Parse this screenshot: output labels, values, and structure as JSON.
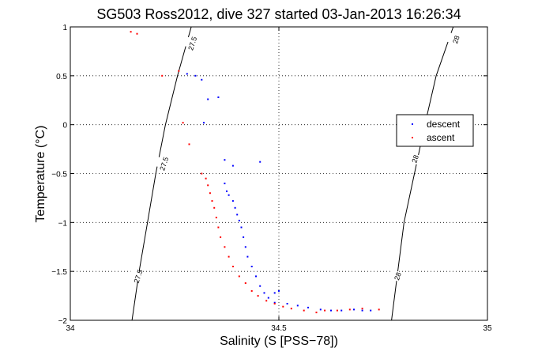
{
  "chart_data": {
    "type": "scatter",
    "title": "SG503 Ross2012, dive 327 started 03-Jan-2013 16:26:34",
    "xlabel": "Salinity (S [PSS−78])",
    "ylabel": "Temperature (°C)",
    "xlim": [
      34,
      35
    ],
    "ylim": [
      -2,
      1
    ],
    "x_ticks": [
      34,
      34.5,
      35
    ],
    "x_tick_labels": [
      "34",
      "34.5",
      "35"
    ],
    "y_ticks": [
      -2,
      -1.5,
      -1,
      -0.5,
      0,
      0.5,
      1
    ],
    "y_tick_labels": [
      "−2",
      "−1.5",
      "−1",
      "−0.5",
      "0",
      "0.5",
      "1"
    ],
    "grid": true,
    "legend_position": "right",
    "contours": [
      {
        "label": "27.5",
        "color": "#000000",
        "points": [
          [
            34.148,
            -2.0
          ],
          [
            34.165,
            -1.5
          ],
          [
            34.185,
            -1.0
          ],
          [
            34.205,
            -0.5
          ],
          [
            34.228,
            0.0
          ],
          [
            34.257,
            0.5
          ],
          [
            34.29,
            1.0
          ]
        ],
        "labels": [
          {
            "x": 34.163,
            "y": -1.55
          },
          {
            "x": 34.225,
            "y": -0.4
          },
          {
            "x": 34.293,
            "y": 0.83
          }
        ]
      },
      {
        "label": "28",
        "color": "#000000",
        "points": [
          [
            34.77,
            -2.0
          ],
          [
            34.785,
            -1.5
          ],
          [
            34.8,
            -1.0
          ],
          [
            34.825,
            -0.5
          ],
          [
            34.85,
            0.0
          ],
          [
            34.877,
            0.5
          ],
          [
            34.918,
            1.0
          ]
        ],
        "labels": [
          {
            "x": 34.785,
            "y": -1.55
          },
          {
            "x": 34.827,
            "y": -0.35
          },
          {
            "x": 34.925,
            "y": 0.87
          }
        ]
      }
    ],
    "series": [
      {
        "name": "descent",
        "color": "#0000ff",
        "points": [
          [
            34.28,
            0.52
          ],
          [
            34.3,
            0.5
          ],
          [
            34.315,
            0.46
          ],
          [
            34.33,
            0.26
          ],
          [
            34.355,
            0.28
          ],
          [
            34.32,
            0.02
          ],
          [
            34.37,
            -0.36
          ],
          [
            34.39,
            -0.42
          ],
          [
            34.455,
            -0.38
          ],
          [
            34.37,
            -0.6
          ],
          [
            34.375,
            -0.68
          ],
          [
            34.38,
            -0.72
          ],
          [
            34.39,
            -0.78
          ],
          [
            34.395,
            -0.85
          ],
          [
            34.4,
            -0.92
          ],
          [
            34.405,
            -0.98
          ],
          [
            34.41,
            -1.05
          ],
          [
            34.415,
            -1.15
          ],
          [
            34.42,
            -1.25
          ],
          [
            34.425,
            -1.35
          ],
          [
            34.435,
            -1.45
          ],
          [
            34.445,
            -1.55
          ],
          [
            34.455,
            -1.65
          ],
          [
            34.465,
            -1.72
          ],
          [
            34.475,
            -1.77
          ],
          [
            34.49,
            -1.72
          ],
          [
            34.5,
            -1.7
          ],
          [
            34.49,
            -1.82
          ],
          [
            34.52,
            -1.83
          ],
          [
            34.545,
            -1.85
          ],
          [
            34.57,
            -1.87
          ],
          [
            34.6,
            -1.89
          ],
          [
            34.625,
            -1.9
          ],
          [
            34.65,
            -1.9
          ],
          [
            34.68,
            -1.89
          ],
          [
            34.7,
            -1.9
          ],
          [
            34.72,
            -1.9
          ]
        ]
      },
      {
        "name": "ascent",
        "color": "#ff0000",
        "points": [
          [
            34.145,
            0.95
          ],
          [
            34.16,
            0.93
          ],
          [
            34.22,
            0.5
          ],
          [
            34.26,
            0.55
          ],
          [
            34.27,
            0.02
          ],
          [
            34.285,
            -0.2
          ],
          [
            34.315,
            -0.5
          ],
          [
            34.325,
            -0.55
          ],
          [
            34.33,
            -0.62
          ],
          [
            34.335,
            -0.7
          ],
          [
            34.34,
            -0.78
          ],
          [
            34.345,
            -0.85
          ],
          [
            34.35,
            -0.95
          ],
          [
            34.355,
            -1.05
          ],
          [
            34.36,
            -1.15
          ],
          [
            34.37,
            -1.25
          ],
          [
            34.38,
            -1.35
          ],
          [
            34.39,
            -1.45
          ],
          [
            34.405,
            -1.55
          ],
          [
            34.42,
            -1.62
          ],
          [
            34.435,
            -1.7
          ],
          [
            34.45,
            -1.75
          ],
          [
            34.47,
            -1.8
          ],
          [
            34.49,
            -1.83
          ],
          [
            34.51,
            -1.86
          ],
          [
            34.53,
            -1.88
          ],
          [
            34.56,
            -1.9
          ],
          [
            34.59,
            -1.92
          ],
          [
            34.61,
            -1.9
          ],
          [
            34.64,
            -1.9
          ],
          [
            34.67,
            -1.89
          ],
          [
            34.7,
            -1.88
          ],
          [
            34.74,
            -1.89
          ]
        ]
      }
    ]
  }
}
